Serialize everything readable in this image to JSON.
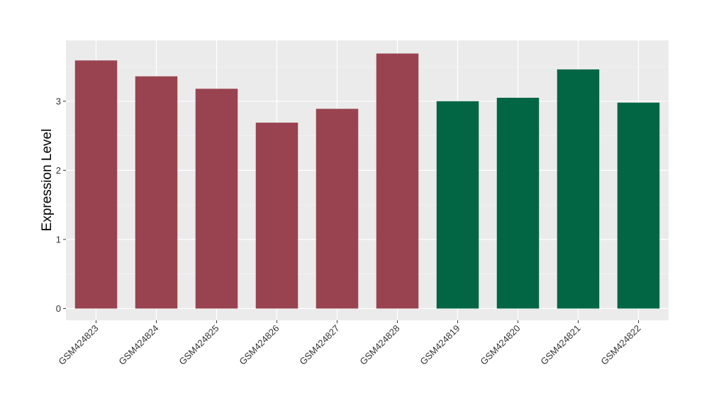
{
  "chart_data": {
    "type": "bar",
    "title": "",
    "xlabel": "",
    "ylabel": "Expression Level",
    "ylim": [
      -0.17,
      3.88
    ],
    "yticks": [
      0,
      1,
      2,
      3
    ],
    "grid": true,
    "legend": "none",
    "panel_background": "#ebebeb",
    "categories": [
      "GSM424823",
      "GSM424824",
      "GSM424825",
      "GSM424826",
      "GSM424827",
      "GSM424828",
      "GSM424819",
      "GSM424820",
      "GSM424821",
      "GSM424822"
    ],
    "values": [
      3.59,
      3.36,
      3.18,
      2.69,
      2.89,
      3.69,
      3.0,
      3.05,
      3.46,
      2.98
    ],
    "bar_colors": [
      "#9a4350",
      "#9a4350",
      "#9a4350",
      "#9a4350",
      "#9a4350",
      "#9a4350",
      "#026645",
      "#026645",
      "#026645",
      "#026645"
    ]
  }
}
